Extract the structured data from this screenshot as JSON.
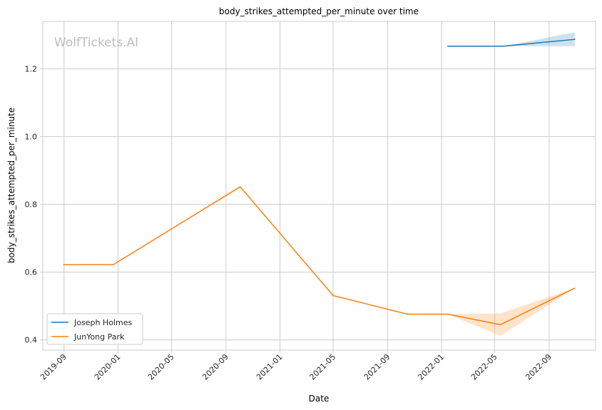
{
  "chart_data": {
    "type": "line",
    "title": "body_strikes_attempted_per_minute over time",
    "xlabel": "Date",
    "ylabel": "body_strikes_attempted_per_minute",
    "watermark": "WolfTickets.AI",
    "x_ticks": [
      "2019-09",
      "2020-01",
      "2020-05",
      "2020-09",
      "2021-01",
      "2021-05",
      "2021-09",
      "2022-01",
      "2022-05",
      "2022-09"
    ],
    "y_ticks": [
      0.4,
      0.6,
      0.8,
      1.0,
      1.2
    ],
    "y_tick_labels": [
      "0.4",
      "0.6",
      "0.8",
      "1.0",
      "1.2"
    ],
    "xlim": [
      "2019-07-15",
      "2022-12-15"
    ],
    "ylim": [
      0.37,
      1.34
    ],
    "grid": true,
    "legend_position": "lower-left",
    "series": [
      {
        "name": "Joseph Holmes",
        "color": "#1f77b4",
        "x": [
          "2022-01-15",
          "2022-05-21",
          "2022-10-29"
        ],
        "y": [
          1.267,
          1.267,
          1.287
        ],
        "band_low": [
          1.267,
          1.267,
          1.267
        ],
        "band_high": [
          1.267,
          1.267,
          1.308
        ]
      },
      {
        "name": "JunYong Park",
        "color": "#ff7f0e",
        "x": [
          "2019-08-31",
          "2019-12-21",
          "2020-10-03",
          "2021-05-01",
          "2021-10-16",
          "2022-01-15",
          "2022-05-14",
          "2022-10-29"
        ],
        "y": [
          0.622,
          0.622,
          0.852,
          0.531,
          0.476,
          0.476,
          0.445,
          0.553
        ],
        "band_low": [
          0.622,
          0.622,
          0.852,
          0.531,
          0.476,
          0.476,
          0.412,
          0.553
        ],
        "band_high": [
          0.622,
          0.622,
          0.852,
          0.531,
          0.476,
          0.476,
          0.478,
          0.553
        ]
      }
    ]
  }
}
